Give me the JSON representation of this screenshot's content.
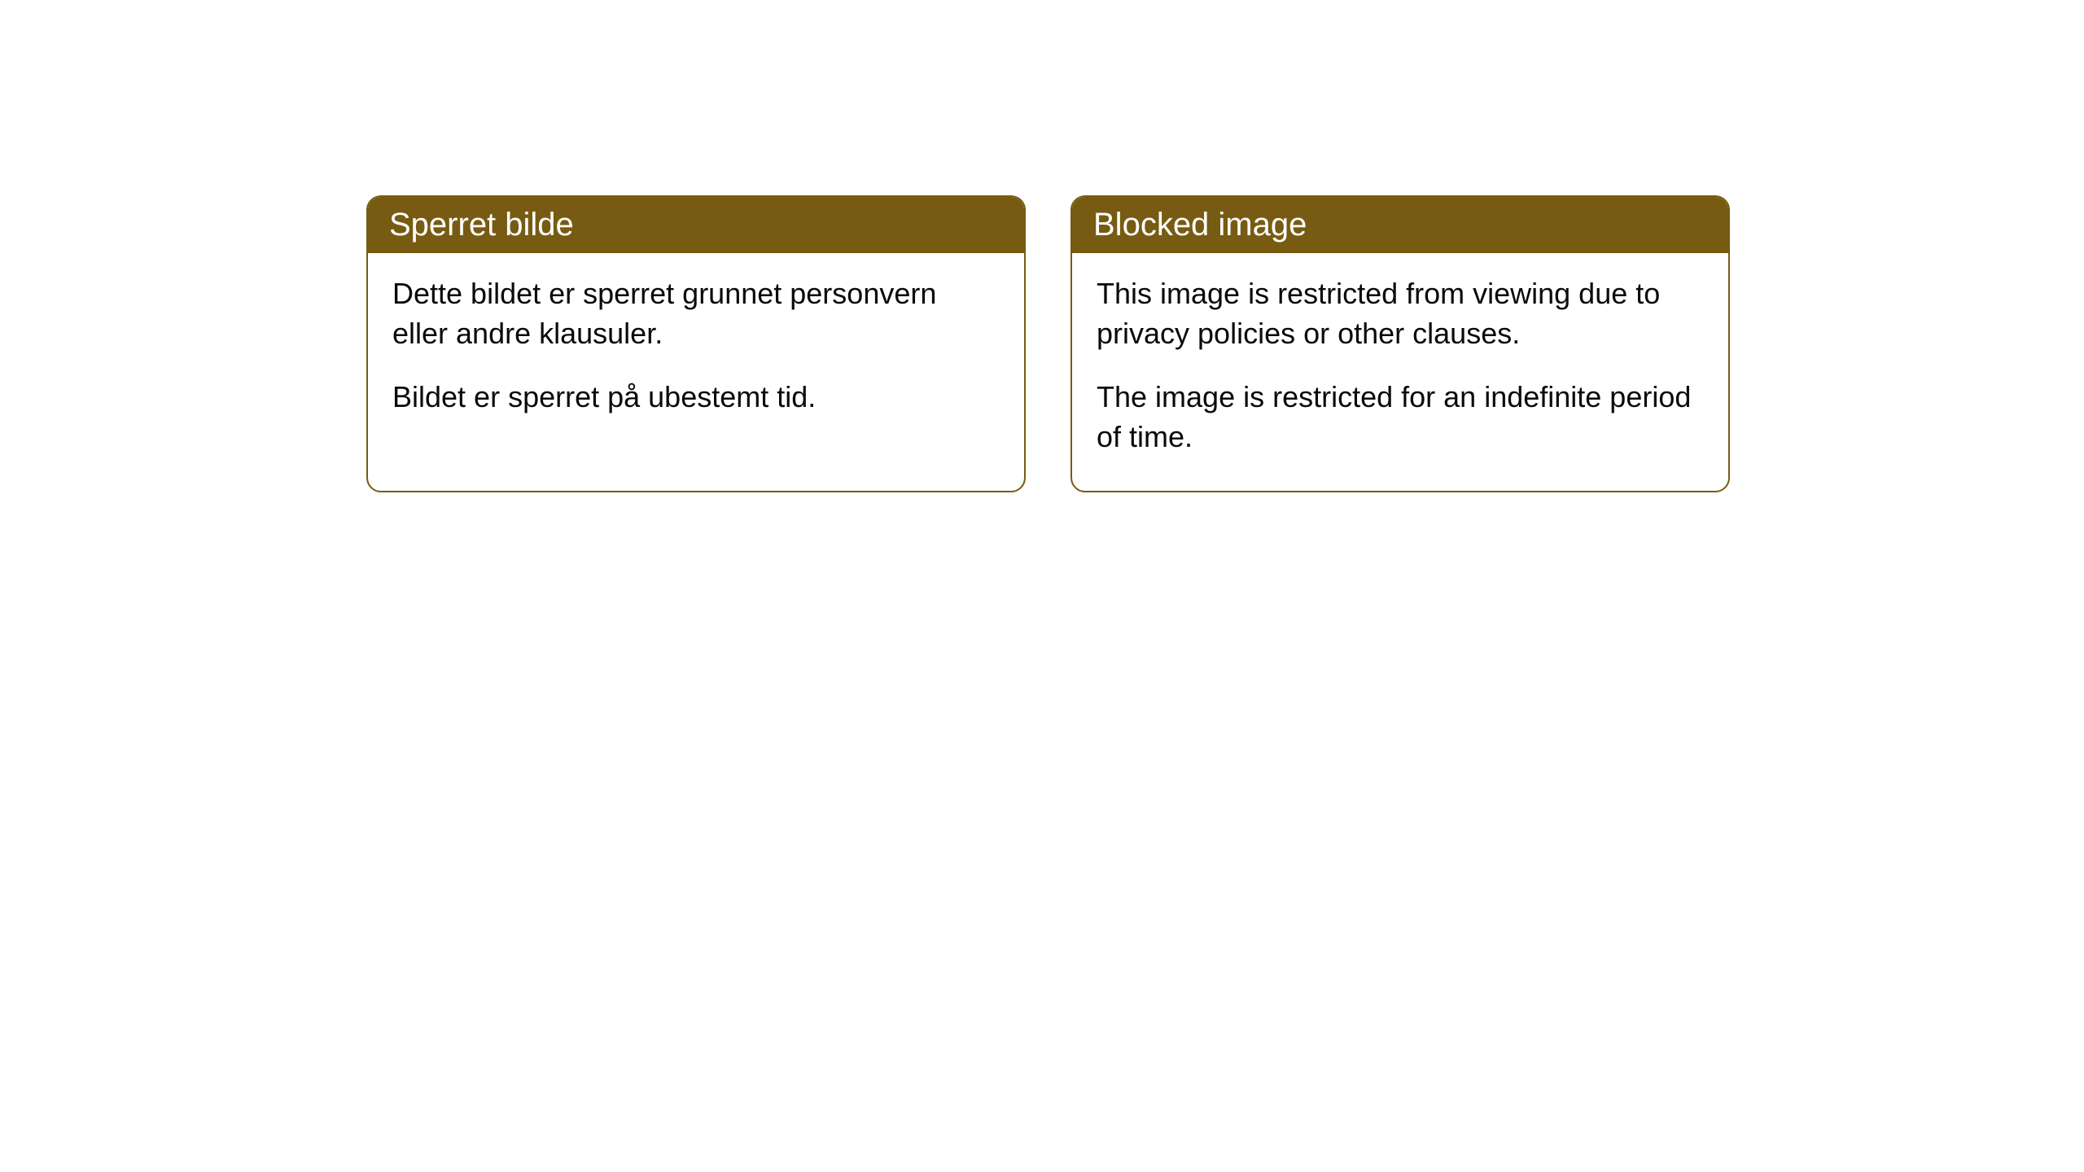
{
  "cards": [
    {
      "title": "Sperret bilde",
      "paragraph1": "Dette bildet er sperret grunnet personvern eller andre klausuler.",
      "paragraph2": "Bildet er sperret på ubestemt tid."
    },
    {
      "title": "Blocked image",
      "paragraph1": "This image is restricted from viewing due to privacy policies or other clauses.",
      "paragraph2": "The image is restricted for an indefinite period of time."
    }
  ],
  "styling": {
    "header_bg_color": "#785b12",
    "header_text_color": "#ffffff",
    "border_color": "#785b12",
    "body_bg_color": "#ffffff",
    "body_text_color": "#0a0a0a",
    "border_radius": 18,
    "title_fontsize": 40,
    "body_fontsize": 36
  }
}
